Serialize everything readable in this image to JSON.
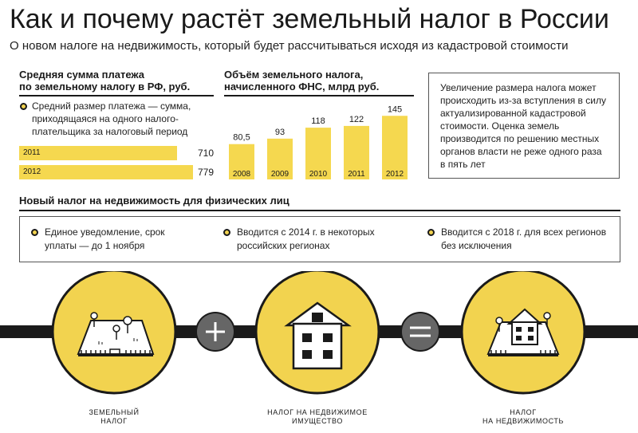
{
  "title": "Как и почему растёт земельный налог в России",
  "subtitle": "О новом налоге на недвижимость, который будет рассчитываться исходя из кадастровой стоимости",
  "colors": {
    "accent": "#f5d84f",
    "dark": "#1a1a1a",
    "circle": "#f2d34f"
  },
  "left_section": {
    "heading_line1": "Средняя сумма платежа",
    "heading_line2": "по земельному налогу в РФ, руб.",
    "note_line1": "Средний размер платежа — сумма,",
    "note_line2": "приходящаяся на одного налого-",
    "note_line3": "плательщика за налоговый период"
  },
  "middle_section": {
    "heading_line1": "Объём земельного налога,",
    "heading_line2": "начисленного ФНС, млрд руб."
  },
  "info_box": {
    "lines": [
      "Увеличение размера налога может",
      "происходить из-за вступления в силу",
      "актуализированной кадастровой",
      "стоимости. Оценка земель",
      "производится по решению местных",
      "органов власти не реже одного раза",
      "в пять лет"
    ]
  },
  "chart_data": [
    {
      "type": "bar",
      "orientation": "horizontal",
      "title": "Средняя сумма платежа по земельному налогу в РФ, руб.",
      "categories": [
        "2011",
        "2012"
      ],
      "values": [
        710,
        779
      ],
      "value_labels": [
        "710",
        "779"
      ]
    },
    {
      "type": "bar",
      "orientation": "vertical",
      "title": "Объём земельного налога, начисленного ФНС, млрд руб.",
      "categories": [
        "2008",
        "2009",
        "2010",
        "2011",
        "2012"
      ],
      "values": [
        80.5,
        93,
        118,
        122,
        145
      ],
      "value_labels": [
        "80,5",
        "93",
        "118",
        "122",
        "145"
      ],
      "ylim": [
        0,
        160
      ]
    }
  ],
  "new_tax": {
    "heading": "Новый налог на недвижимость для физических лиц",
    "items": [
      {
        "line1": "Единое уведомление, срок",
        "line2": "уплаты — до 1 ноября"
      },
      {
        "line1": "Вводится с 2014 г. в некоторых",
        "line2": "российских регионах"
      },
      {
        "line1": "Вводится с 2018 г. для всех регионов",
        "line2": "без исключения"
      }
    ]
  },
  "formula": {
    "land_label_line1": "ЗЕМЕЛЬНЫЙ",
    "land_label_line2": "НАЛОГ",
    "property_label_line1": "НАЛОГ НА НЕДВИЖИМОЕ",
    "property_label_line2": "ИМУЩЕСТВО",
    "total_label_line1": "НАЛОГ",
    "total_label_line2": "НА НЕДВИЖИМОСТЬ",
    "plus_icon": "plus-icon",
    "equals_icon": "equals-icon"
  }
}
